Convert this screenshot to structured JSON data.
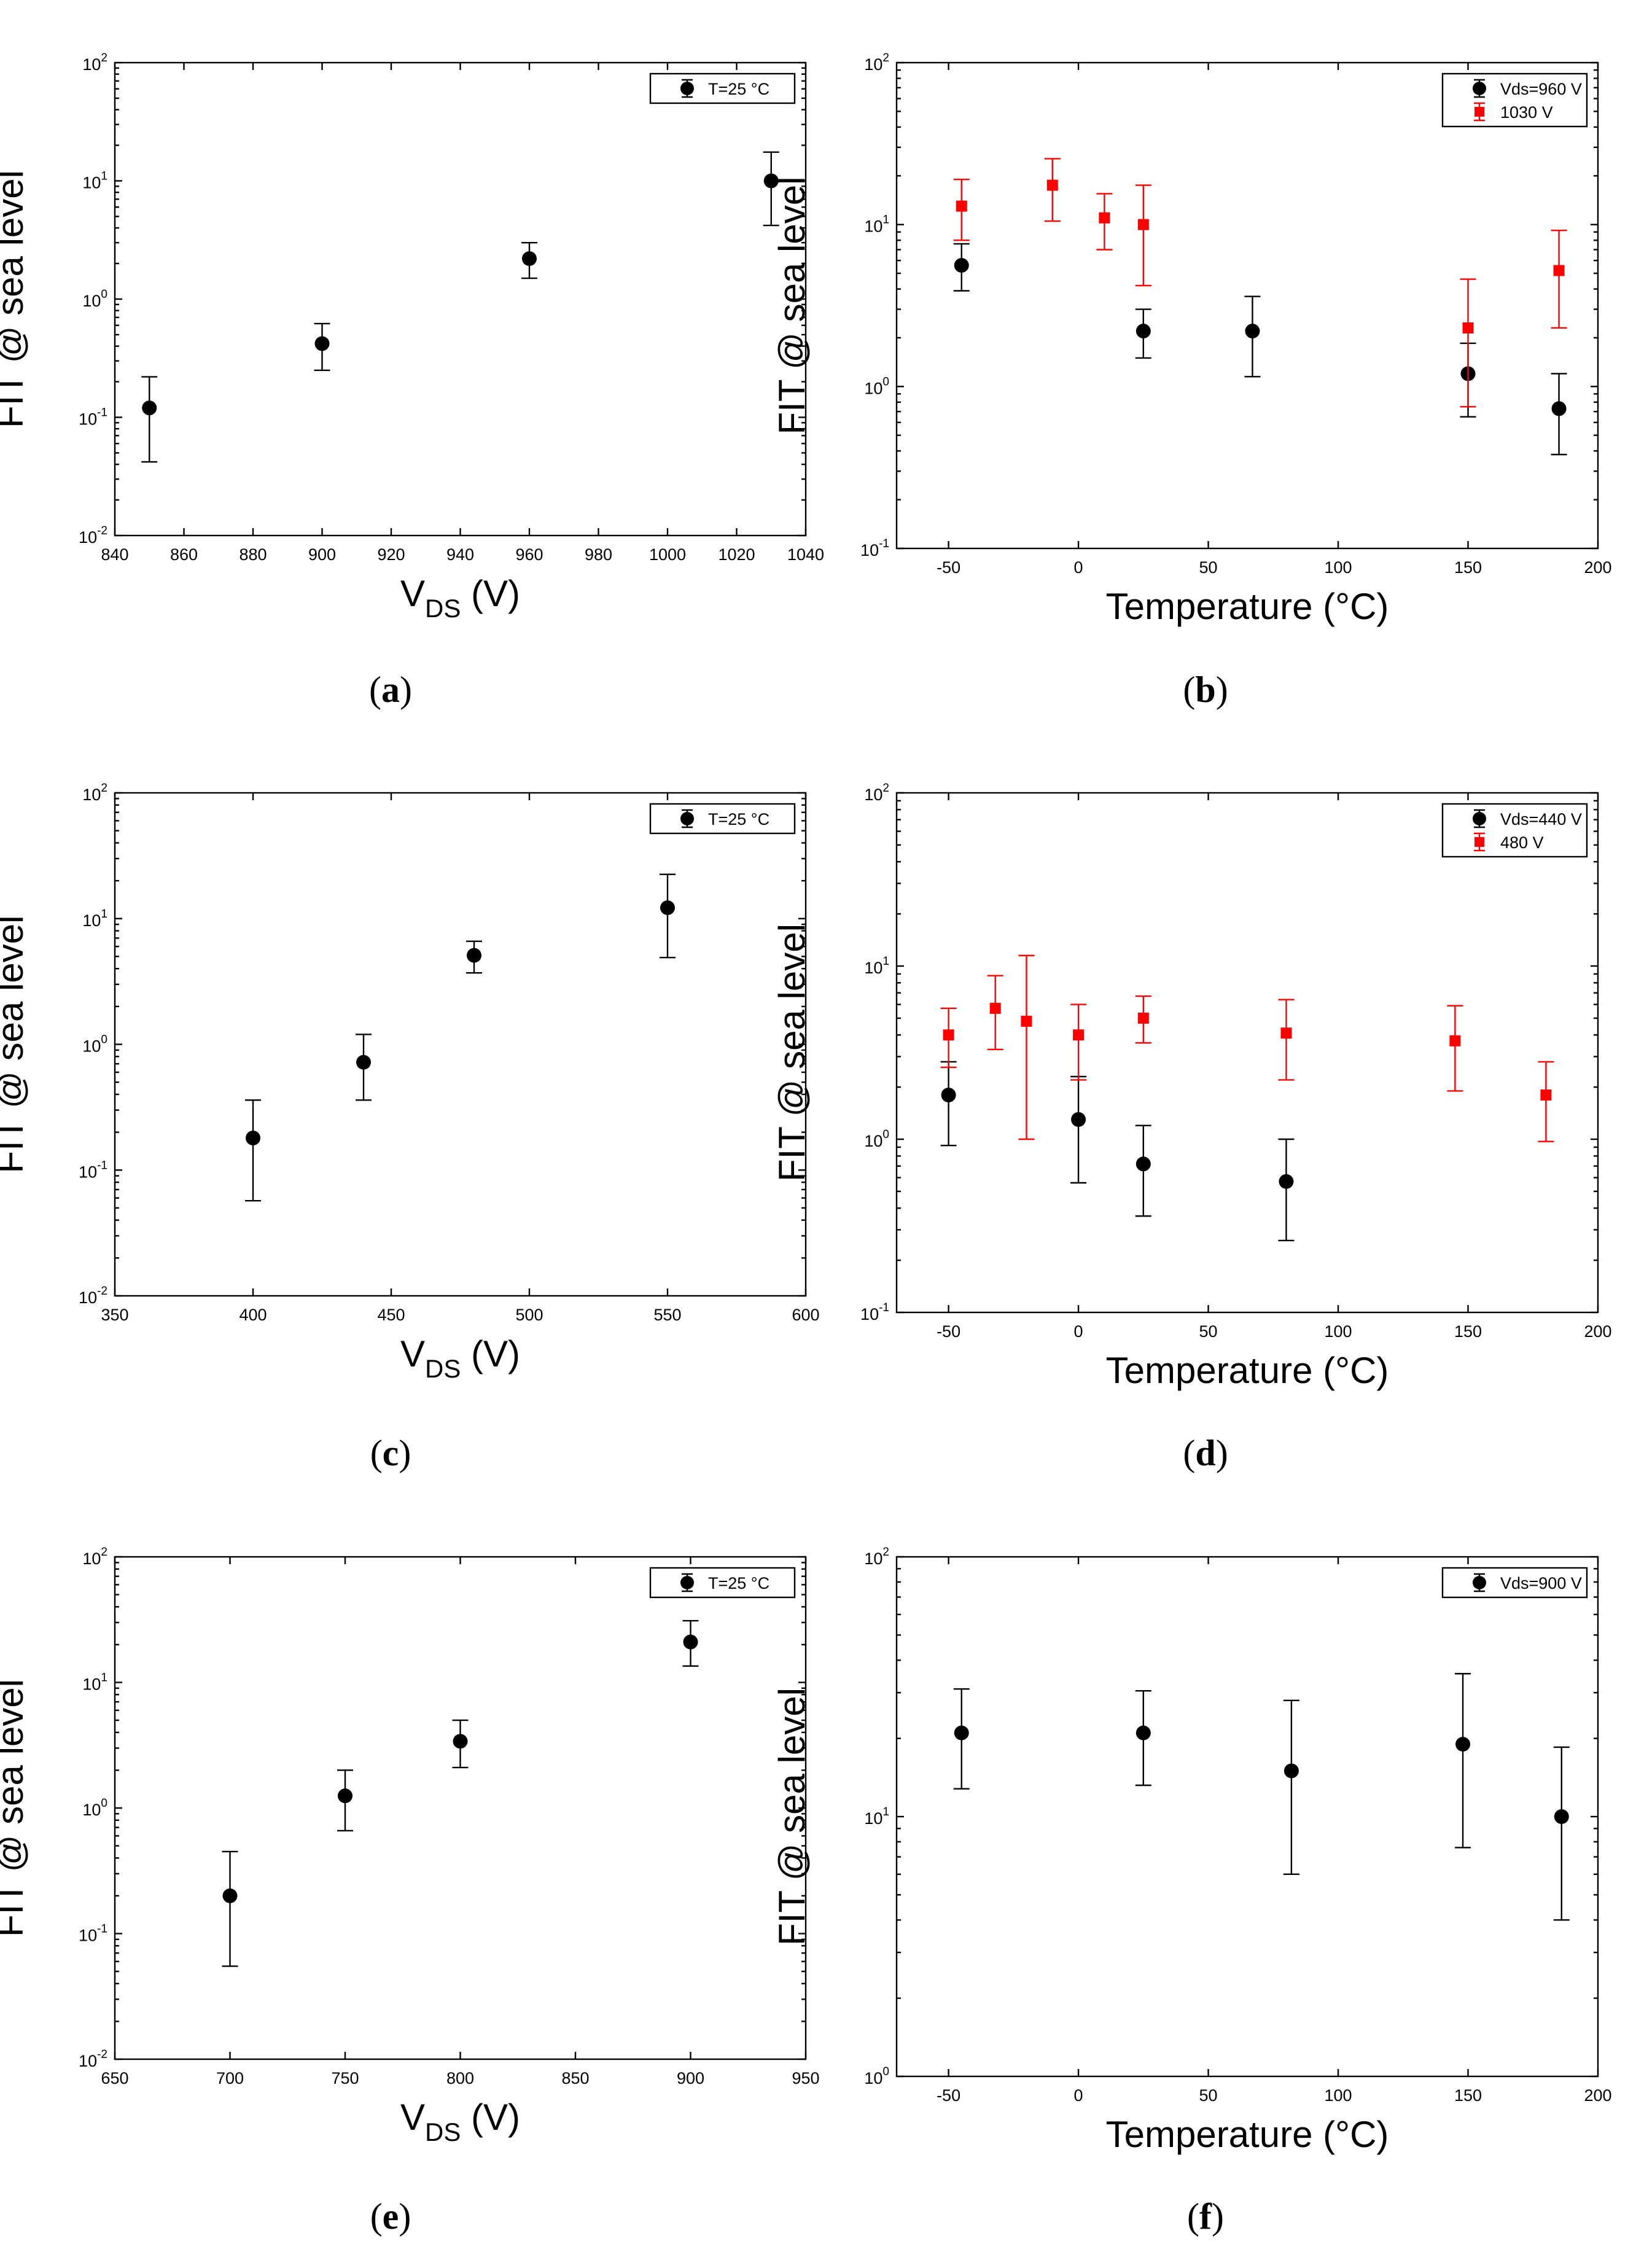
{
  "colors": {
    "black": "#000000",
    "red": "#ff0000"
  },
  "chart_data": [
    {
      "caption": "a",
      "type": "scatter",
      "xscale": "linear",
      "yscale": "log",
      "xlabel_main": "V",
      "xlabel_sub": "DS",
      "xlabel_tail": " (V)",
      "ylabel": "FIT @ sea level",
      "xlim": [
        840,
        1040
      ],
      "xticks": [
        840,
        860,
        880,
        900,
        920,
        940,
        960,
        980,
        1000,
        1020,
        1040
      ],
      "ylim": [
        0.01,
        100
      ],
      "yticks": [
        0.01,
        0.1,
        1,
        10,
        100
      ],
      "legend_position": "top-right",
      "series": [
        {
          "name": "T=25 °C",
          "color": "#000000",
          "marker": "circle",
          "x": [
            850,
            900,
            960,
            1030
          ],
          "y": [
            0.12,
            0.42,
            2.2,
            10
          ],
          "ylow": [
            0.042,
            0.25,
            1.5,
            4.2
          ],
          "yhigh": [
            0.22,
            0.62,
            3.0,
            17.5
          ]
        }
      ]
    },
    {
      "caption": "b",
      "type": "scatter",
      "xscale": "linear",
      "yscale": "log",
      "xlabel_main": "Temperature (°C)",
      "xlabel_sub": "",
      "xlabel_tail": "",
      "ylabel": "FIT @ sea level",
      "xlim": [
        -70,
        200
      ],
      "xticks": [
        -50,
        0,
        50,
        100,
        150,
        200
      ],
      "ylim": [
        0.1,
        100
      ],
      "yticks": [
        0.1,
        1,
        10,
        100
      ],
      "legend_position": "top-right",
      "series": [
        {
          "name": "Vds=960 V",
          "color": "#000000",
          "marker": "circle",
          "x": [
            -45,
            25,
            67,
            150,
            185
          ],
          "y": [
            5.6,
            2.2,
            2.2,
            1.2,
            0.73
          ],
          "ylow": [
            3.9,
            1.5,
            1.15,
            0.65,
            0.38
          ],
          "yhigh": [
            7.6,
            3.0,
            3.6,
            1.85,
            1.2
          ]
        },
        {
          "name": "1030 V",
          "color": "#ff0000",
          "marker": "square",
          "x": [
            -45,
            -10,
            10,
            25,
            150,
            185
          ],
          "y": [
            13,
            17.5,
            11,
            10,
            2.3,
            5.2
          ],
          "ylow": [
            8,
            10.5,
            7,
            4.2,
            0.75,
            2.3
          ],
          "yhigh": [
            19,
            25.5,
            15.5,
            17.5,
            4.6,
            9.2
          ]
        }
      ]
    },
    {
      "caption": "c",
      "type": "scatter",
      "xscale": "linear",
      "yscale": "log",
      "xlabel_main": "V",
      "xlabel_sub": "DS",
      "xlabel_tail": " (V)",
      "ylabel": "FIT @ sea level",
      "xlim": [
        350,
        600
      ],
      "xticks": [
        350,
        400,
        450,
        500,
        550,
        600
      ],
      "ylim": [
        0.01,
        100
      ],
      "yticks": [
        0.01,
        0.1,
        1,
        10,
        100
      ],
      "legend_position": "top-right",
      "series": [
        {
          "name": "T=25 °C",
          "color": "#000000",
          "marker": "circle",
          "x": [
            400,
            440,
            480,
            550
          ],
          "y": [
            0.18,
            0.72,
            5.1,
            12.2
          ],
          "ylow": [
            0.057,
            0.36,
            3.7,
            4.9
          ],
          "yhigh": [
            0.36,
            1.2,
            6.6,
            22.5
          ]
        }
      ]
    },
    {
      "caption": "d",
      "type": "scatter",
      "xscale": "linear",
      "yscale": "log",
      "xlabel_main": "Temperature (°C)",
      "xlabel_sub": "",
      "xlabel_tail": "",
      "ylabel": "FIT @ sea level",
      "xlim": [
        -70,
        200
      ],
      "xticks": [
        -50,
        0,
        50,
        100,
        150,
        200
      ],
      "ylim": [
        0.1,
        100
      ],
      "yticks": [
        0.1,
        1,
        10,
        100
      ],
      "legend_position": "top-right",
      "series": [
        {
          "name": "Vds=440 V",
          "color": "#000000",
          "marker": "circle",
          "x": [
            -50,
            0,
            25,
            80
          ],
          "y": [
            1.8,
            1.3,
            0.72,
            0.57
          ],
          "ylow": [
            0.92,
            0.56,
            0.36,
            0.26
          ],
          "yhigh": [
            2.8,
            2.3,
            1.2,
            1.0
          ]
        },
        {
          "name": "480 V",
          "color": "#ff0000",
          "marker": "square",
          "x": [
            -50,
            -32,
            -20,
            0,
            25,
            80,
            145,
            180
          ],
          "y": [
            4.0,
            5.7,
            4.8,
            4.0,
            5.0,
            4.1,
            3.7,
            1.8
          ],
          "ylow": [
            2.6,
            3.3,
            1.0,
            2.2,
            3.6,
            2.2,
            1.9,
            0.97
          ],
          "yhigh": [
            5.7,
            8.8,
            11.5,
            6.0,
            6.7,
            6.4,
            5.9,
            2.8
          ]
        }
      ]
    },
    {
      "caption": "e",
      "type": "scatter",
      "xscale": "linear",
      "yscale": "log",
      "xlabel_main": "V",
      "xlabel_sub": "DS",
      "xlabel_tail": " (V)",
      "ylabel": "FIT @ sea level",
      "xlim": [
        650,
        950
      ],
      "xticks": [
        650,
        700,
        750,
        800,
        850,
        900,
        950
      ],
      "ylim": [
        0.01,
        100
      ],
      "yticks": [
        0.01,
        0.1,
        1,
        10,
        100
      ],
      "legend_position": "top-right",
      "series": [
        {
          "name": "T=25 °C",
          "color": "#000000",
          "marker": "circle",
          "x": [
            700,
            750,
            800,
            900
          ],
          "y": [
            0.2,
            1.25,
            3.4,
            21
          ],
          "ylow": [
            0.055,
            0.66,
            2.1,
            13.5
          ],
          "yhigh": [
            0.45,
            2.0,
            5.0,
            31
          ]
        }
      ]
    },
    {
      "caption": "f",
      "type": "scatter",
      "xscale": "linear",
      "yscale": "log",
      "xlabel_main": "Temperature (°C)",
      "xlabel_sub": "",
      "xlabel_tail": "",
      "ylabel": "FIT @ sea level",
      "xlim": [
        -70,
        200
      ],
      "xticks": [
        -50,
        0,
        50,
        100,
        150,
        200
      ],
      "ylim": [
        1,
        100
      ],
      "yticks": [
        1,
        10,
        100
      ],
      "legend_position": "top-right",
      "series": [
        {
          "name": "Vds=900 V",
          "color": "#000000",
          "marker": "circle",
          "x": [
            -45,
            25,
            82,
            148,
            186
          ],
          "y": [
            21,
            21,
            15,
            19,
            10
          ],
          "ylow": [
            12.8,
            13.2,
            6.0,
            7.6,
            4.0
          ],
          "yhigh": [
            31,
            30.5,
            28,
            35.5,
            18.5
          ]
        }
      ]
    }
  ]
}
